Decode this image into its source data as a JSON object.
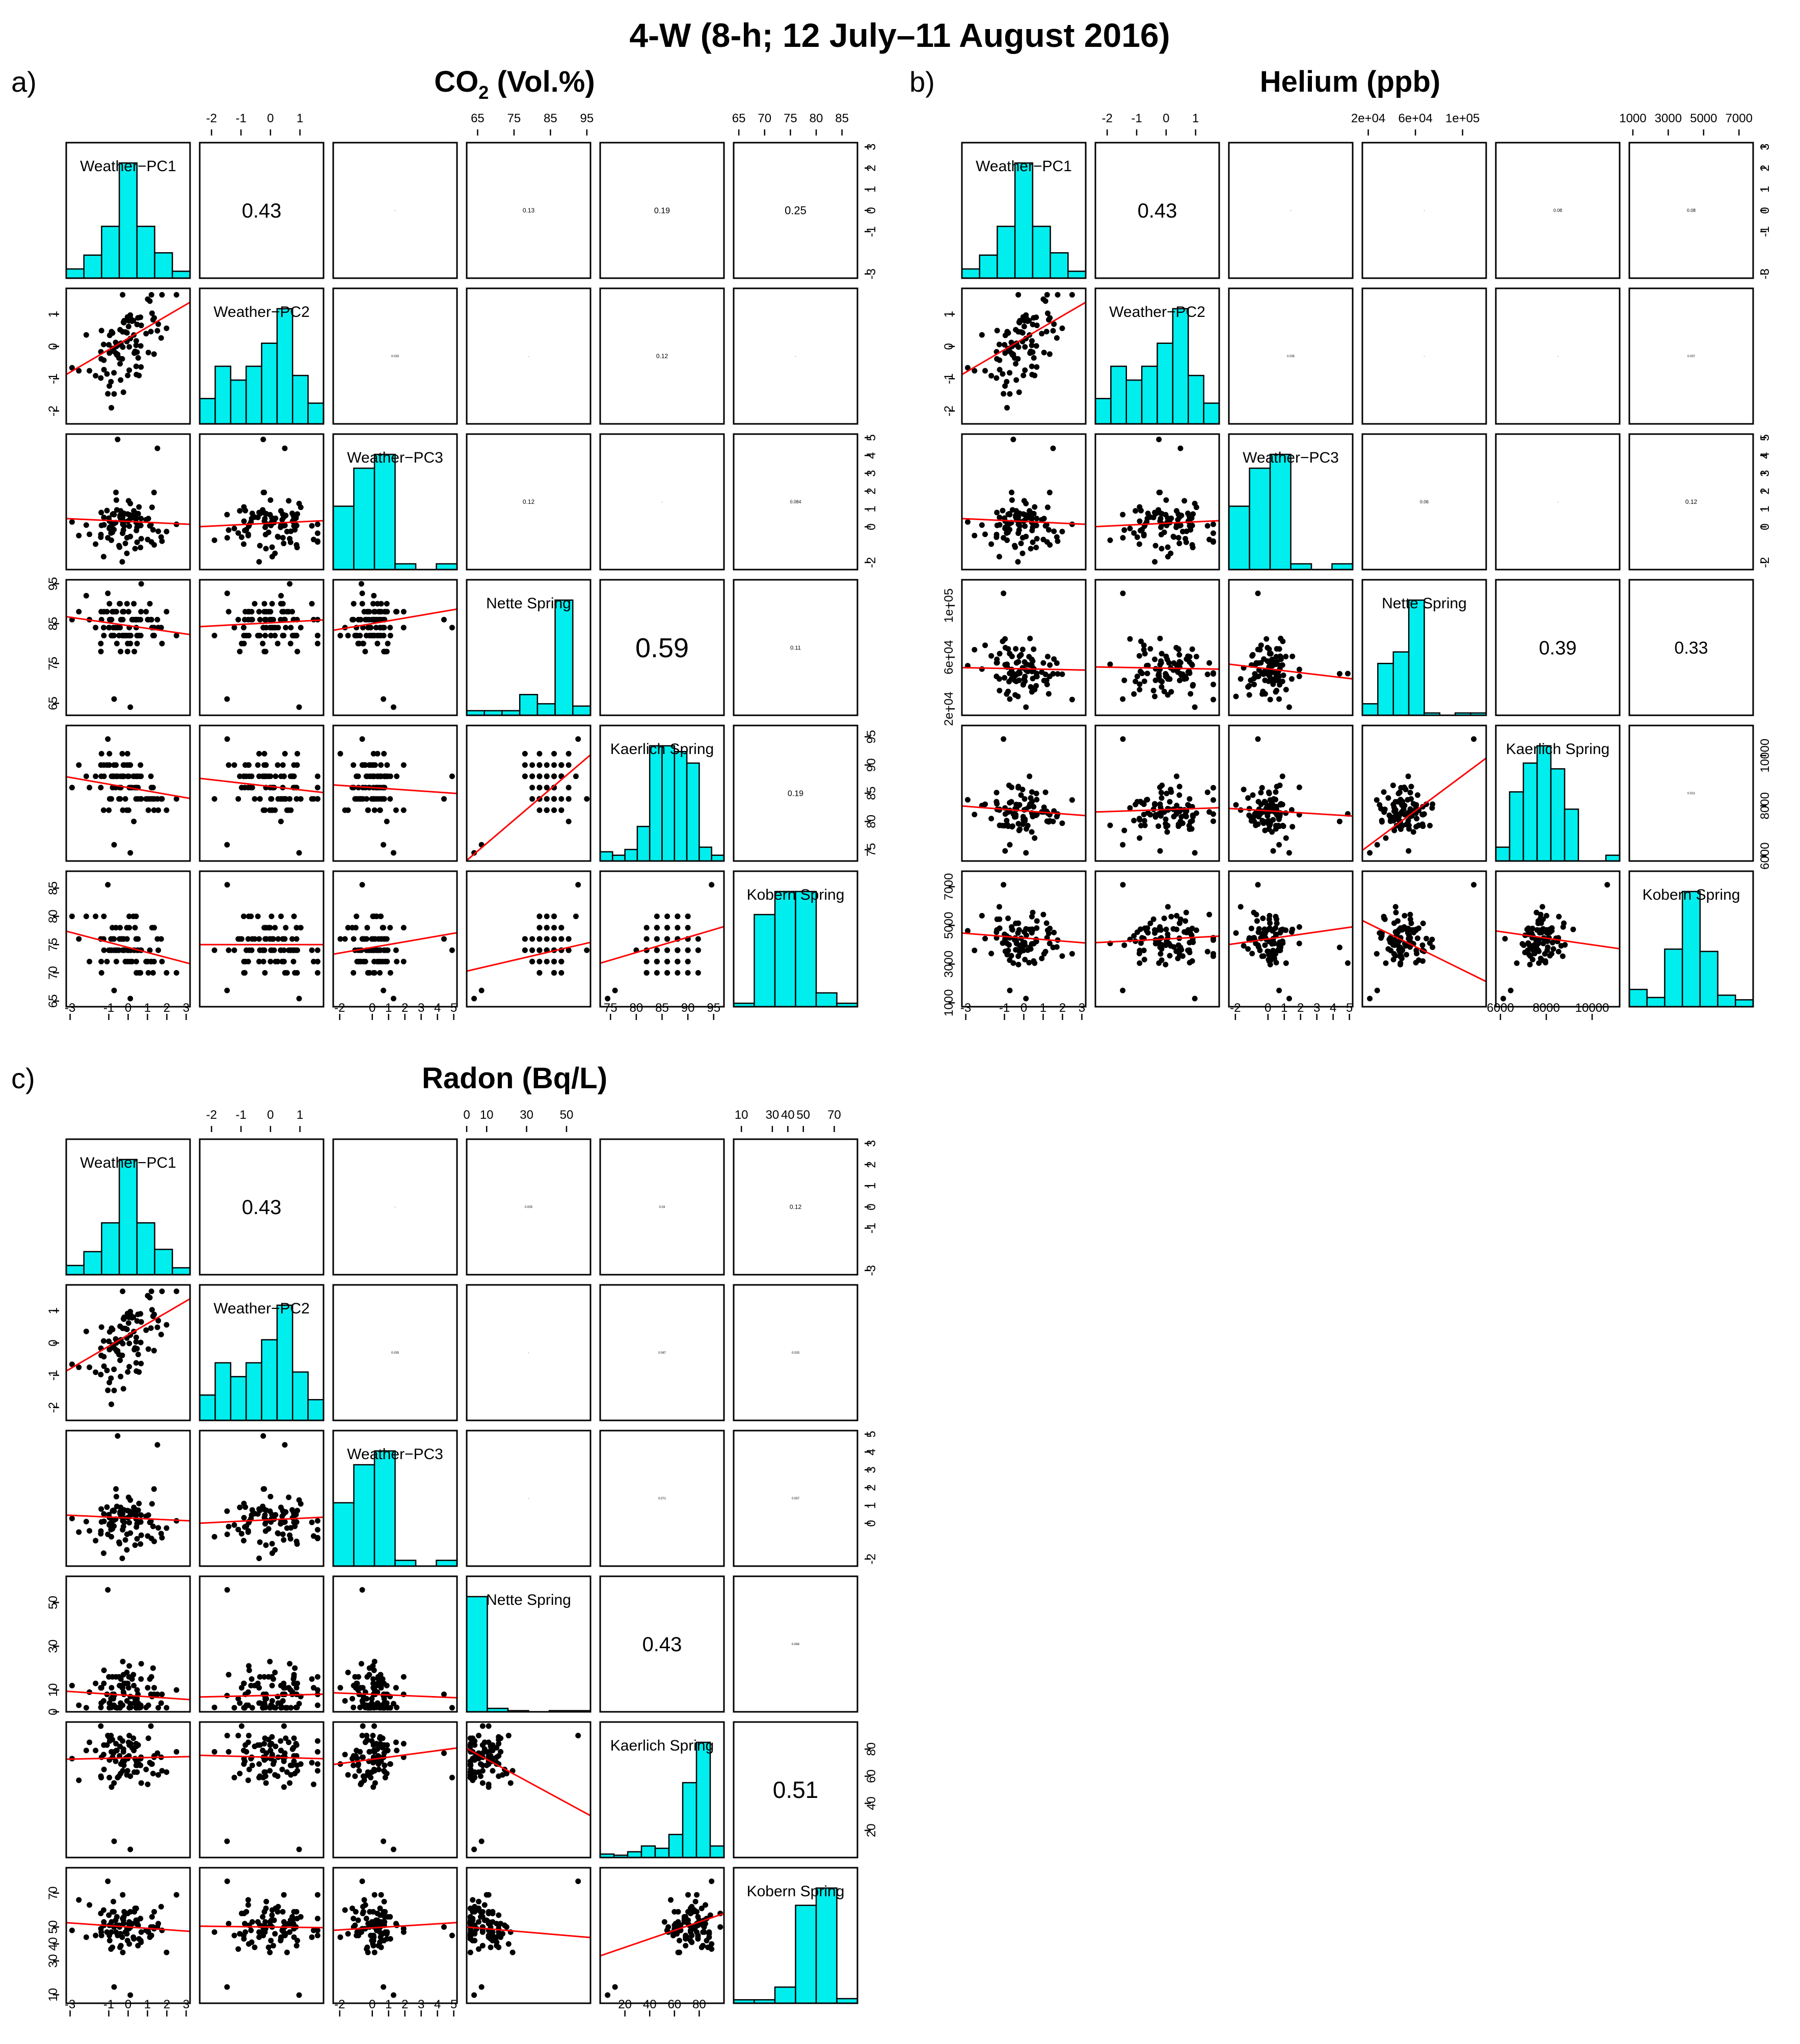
{
  "figure": {
    "title": "4-W (8-h; 12 July–11 August 2016)"
  },
  "chart_data": [
    {
      "type": "scatter-matrix",
      "panel_label": "a)",
      "title": "CO",
      "title_sub": "2",
      "title_suffix": " (Vol.%)",
      "variables": [
        "Weather−PC1",
        "Weather−PC2",
        "Weather−PC3",
        "Nette Spring",
        "Kaerlich Spring",
        "Kobern Spring"
      ],
      "ranges": [
        [
          -3.2,
          3.2
        ],
        [
          -2.4,
          1.8
        ],
        [
          -2.4,
          5.2
        ],
        [
          62,
          96
        ],
        [
          73,
          97
        ],
        [
          64,
          88
        ]
      ],
      "ticks": [
        [
          "-3",
          "-1",
          "0",
          "1",
          "2",
          "3"
        ],
        [
          "-2",
          "-1",
          "0",
          "1"
        ],
        [
          "-2",
          "0",
          "1",
          "2",
          "3",
          "4",
          "5"
        ],
        [
          "65",
          "75",
          "85",
          "95"
        ],
        [
          "75",
          "80",
          "85",
          "90",
          "95"
        ],
        [
          "65",
          "70",
          "75",
          "80",
          "85"
        ]
      ],
      "tick_values": [
        [
          -3,
          -1,
          0,
          1,
          2,
          3
        ],
        [
          -2,
          -1,
          0,
          1
        ],
        [
          -2,
          0,
          1,
          2,
          3,
          4,
          5
        ],
        [
          65,
          75,
          85,
          95
        ],
        [
          75,
          80,
          85,
          90,
          95
        ],
        [
          65,
          70,
          75,
          80,
          85
        ]
      ],
      "histograms": [
        [
          0.08,
          0.2,
          0.45,
          1.0,
          0.45,
          0.22,
          0.06
        ],
        [
          0.22,
          0.5,
          0.38,
          0.5,
          0.7,
          1.0,
          0.42,
          0.18
        ],
        [
          0.55,
          0.88,
          1.0,
          0.05,
          0.0,
          0.05
        ],
        [
          0.04,
          0.04,
          0.04,
          0.18,
          0.1,
          1.0,
          0.08
        ],
        [
          0.08,
          0.05,
          0.1,
          0.3,
          1.0,
          1.0,
          0.95,
          0.85,
          0.12,
          0.05
        ],
        [
          0.03,
          0.8,
          1.0,
          1.0,
          0.12,
          0.03
        ]
      ],
      "correlations": [
        {
          "row": 0,
          "col": 1,
          "value": "0.43",
          "scale": 1.0
        },
        {
          "row": 0,
          "col": 2,
          "value": "-",
          "scale": 0.15
        },
        {
          "row": 0,
          "col": 3,
          "value": "0.13",
          "scale": 0.3
        },
        {
          "row": 0,
          "col": 4,
          "value": "0.19",
          "scale": 0.4
        },
        {
          "row": 0,
          "col": 5,
          "value": "0.25",
          "scale": 0.55
        },
        {
          "row": 1,
          "col": 2,
          "value": "0.033",
          "scale": 0.15
        },
        {
          "row": 1,
          "col": 3,
          "value": "-",
          "scale": 0.15
        },
        {
          "row": 1,
          "col": 4,
          "value": "0.12",
          "scale": 0.3
        },
        {
          "row": 1,
          "col": 5,
          "value": "-",
          "scale": 0.15
        },
        {
          "row": 2,
          "col": 3,
          "value": "0.12",
          "scale": 0.3
        },
        {
          "row": 2,
          "col": 4,
          "value": "-",
          "scale": 0.15
        },
        {
          "row": 2,
          "col": 5,
          "value": "0.084",
          "scale": 0.22
        },
        {
          "row": 3,
          "col": 4,
          "value": "0.59",
          "scale": 1.35
        },
        {
          "row": 3,
          "col": 5,
          "value": "0.11",
          "scale": 0.28
        },
        {
          "row": 4,
          "col": 5,
          "value": "0.19",
          "scale": 0.4
        }
      ],
      "fits": [
        {
          "row": 1,
          "col": 0,
          "a": 0.25,
          "b": 0.35
        },
        {
          "row": 2,
          "col": 0,
          "a": 0.3,
          "b": -0.05
        },
        {
          "row": 2,
          "col": 1,
          "a": 0.2,
          "b": 0.08
        },
        {
          "row": 3,
          "col": 0,
          "a": 84.5,
          "b": -0.7
        },
        {
          "row": 3,
          "col": 1,
          "a": 85.2,
          "b": 0.4
        },
        {
          "row": 3,
          "col": 2,
          "a": 85.0,
          "b": 0.7
        },
        {
          "row": 4,
          "col": 0,
          "a": 86.0,
          "b": -0.6
        },
        {
          "row": 4,
          "col": 1,
          "a": 86.2,
          "b": -0.6
        },
        {
          "row": 4,
          "col": 2,
          "a": 86.0,
          "b": -0.2
        },
        {
          "row": 4,
          "col": 3,
          "a": 39.0,
          "b": 0.55
        },
        {
          "row": 5,
          "col": 0,
          "a": 74.5,
          "b": -0.9
        },
        {
          "row": 5,
          "col": 1,
          "a": 75.0,
          "b": 0.0
        },
        {
          "row": 5,
          "col": 2,
          "a": 74.5,
          "b": 0.5
        },
        {
          "row": 5,
          "col": 3,
          "a": 61.0,
          "b": 0.15
        },
        {
          "row": 5,
          "col": 4,
          "a": 52.0,
          "b": 0.27
        }
      ],
      "rounding": [
        0.1,
        0.1,
        0.1,
        2,
        2,
        2
      ]
    },
    {
      "type": "scatter-matrix",
      "panel_label": "b)",
      "title": "Helium (ppb)",
      "title_sub": "",
      "title_suffix": "",
      "variables": [
        "Weather−PC1",
        "Weather−PC2",
        "Weather−PC3",
        "Nette Spring",
        "Kaerlich Spring",
        "Kobern Spring"
      ],
      "ranges": [
        [
          -3.2,
          3.2
        ],
        [
          -2.4,
          1.8
        ],
        [
          -2.4,
          5.2
        ],
        [
          15000,
          120000
        ],
        [
          5800,
          11200
        ],
        [
          800,
          7800
        ]
      ],
      "ticks": [
        [
          "-3",
          "-1",
          "0",
          "1",
          "2",
          "3"
        ],
        [
          "-2",
          "-1",
          "0",
          "1"
        ],
        [
          "-2",
          "0",
          "1",
          "2",
          "3",
          "4",
          "5"
        ],
        [
          "2e+04",
          "6e+04",
          "1e+05"
        ],
        [
          "6000",
          "8000",
          "10000"
        ],
        [
          "1000",
          "3000",
          "5000",
          "7000"
        ]
      ],
      "tick_values": [
        [
          -3,
          -1,
          0,
          1,
          2,
          3
        ],
        [
          -2,
          -1,
          0,
          1
        ],
        [
          -2,
          0,
          1,
          2,
          3,
          4,
          5
        ],
        [
          20000,
          60000,
          100000
        ],
        [
          6000,
          8000,
          10000
        ],
        [
          1000,
          3000,
          5000,
          7000
        ]
      ],
      "histograms": [
        [
          0.08,
          0.2,
          0.45,
          1.0,
          0.45,
          0.22,
          0.06
        ],
        [
          0.22,
          0.5,
          0.38,
          0.5,
          0.7,
          1.0,
          0.42,
          0.18
        ],
        [
          0.55,
          0.88,
          1.0,
          0.05,
          0.0,
          0.05
        ],
        [
          0.1,
          0.45,
          0.55,
          1.0,
          0.02,
          0.0,
          0.02,
          0.02
        ],
        [
          0.12,
          0.6,
          0.85,
          1.0,
          0.8,
          0.45,
          0.0,
          0.0,
          0.05
        ],
        [
          0.15,
          0.08,
          0.5,
          1.0,
          0.48,
          0.1,
          0.06
        ]
      ],
      "correlations": [
        {
          "row": 0,
          "col": 1,
          "value": "0.43",
          "scale": 1.0
        },
        {
          "row": 0,
          "col": 2,
          "value": "-",
          "scale": 0.15
        },
        {
          "row": 0,
          "col": 3,
          "value": "-",
          "scale": 0.15
        },
        {
          "row": 0,
          "col": 4,
          "value": "0.08",
          "scale": 0.22
        },
        {
          "row": 0,
          "col": 5,
          "value": "0.08",
          "scale": 0.22
        },
        {
          "row": 1,
          "col": 2,
          "value": "0.035",
          "scale": 0.15
        },
        {
          "row": 1,
          "col": 3,
          "value": "-",
          "scale": 0.15
        },
        {
          "row": 1,
          "col": 4,
          "value": "-",
          "scale": 0.15
        },
        {
          "row": 1,
          "col": 5,
          "value": "0.037",
          "scale": 0.15
        },
        {
          "row": 2,
          "col": 3,
          "value": "0.06",
          "scale": 0.22
        },
        {
          "row": 2,
          "col": 4,
          "value": "-",
          "scale": 0.15
        },
        {
          "row": 2,
          "col": 5,
          "value": "0.12",
          "scale": 0.3
        },
        {
          "row": 3,
          "col": 4,
          "value": "0.39",
          "scale": 0.95
        },
        {
          "row": 3,
          "col": 5,
          "value": "0.33",
          "scale": 0.85
        },
        {
          "row": 4,
          "col": 5,
          "value": "0.021",
          "scale": 0.15
        }
      ],
      "fits": [
        {
          "row": 1,
          "col": 0,
          "a": 0.25,
          "b": 0.35
        },
        {
          "row": 2,
          "col": 0,
          "a": 0.3,
          "b": -0.05
        },
        {
          "row": 2,
          "col": 1,
          "a": 0.2,
          "b": 0.08
        },
        {
          "row": 3,
          "col": 0,
          "a": 51000,
          "b": -300
        },
        {
          "row": 3,
          "col": 1,
          "a": 51500,
          "b": -400
        },
        {
          "row": 3,
          "col": 2,
          "a": 51000,
          "b": -1500
        },
        {
          "row": 4,
          "col": 0,
          "a": 7800,
          "b": -60
        },
        {
          "row": 4,
          "col": 1,
          "a": 7850,
          "b": 40
        },
        {
          "row": 4,
          "col": 2,
          "a": 7800,
          "b": -40
        },
        {
          "row": 4,
          "col": 3,
          "a": 5700,
          "b": 0.035
        },
        {
          "row": 5,
          "col": 0,
          "a": 4350,
          "b": -80
        },
        {
          "row": 5,
          "col": 1,
          "a": 4300,
          "b": 80
        },
        {
          "row": 5,
          "col": 2,
          "a": 4300,
          "b": 120
        },
        {
          "row": 5,
          "col": 3,
          "a": 5700,
          "b": -0.03
        },
        {
          "row": 5,
          "col": 4,
          "a": 5700,
          "b": -0.17
        }
      ],
      "rounding": [
        0.1,
        0.1,
        0.1,
        1,
        1,
        1
      ]
    },
    {
      "type": "scatter-matrix",
      "panel_label": "c)",
      "title": "Radon (Bq/L)",
      "title_sub": "",
      "title_suffix": "",
      "variables": [
        "Weather−PC1",
        "Weather−PC2",
        "Weather−PC3",
        "Nette Spring",
        "Kaerlich Spring",
        "Kobern Spring"
      ],
      "ranges": [
        [
          -3.2,
          3.2
        ],
        [
          -2.4,
          1.8
        ],
        [
          -2.4,
          5.2
        ],
        [
          0,
          62
        ],
        [
          0,
          100
        ],
        [
          5,
          85
        ]
      ],
      "ticks": [
        [
          "-3",
          "-1",
          "0",
          "1",
          "2",
          "3"
        ],
        [
          "-2",
          "-1",
          "0",
          "1"
        ],
        [
          "-2",
          "0",
          "1",
          "2",
          "3",
          "4",
          "5"
        ],
        [
          "0",
          "10",
          "30",
          "50"
        ],
        [
          "20",
          "40",
          "60",
          "80"
        ],
        [
          "10",
          "30",
          "40",
          "50",
          "70"
        ]
      ],
      "tick_values": [
        [
          -3,
          -1,
          0,
          1,
          2,
          3
        ],
        [
          -2,
          -1,
          0,
          1
        ],
        [
          -2,
          0,
          1,
          2,
          3,
          4,
          5
        ],
        [
          0,
          10,
          30,
          50
        ],
        [
          20,
          40,
          60,
          80
        ],
        [
          10,
          30,
          40,
          50,
          70
        ]
      ],
      "histograms": [
        [
          0.08,
          0.2,
          0.45,
          1.0,
          0.45,
          0.22,
          0.06
        ],
        [
          0.22,
          0.5,
          0.38,
          0.5,
          0.7,
          1.0,
          0.42,
          0.18
        ],
        [
          0.55,
          0.88,
          1.0,
          0.05,
          0.0,
          0.05
        ],
        [
          1.0,
          0.03,
          0.01,
          0.0,
          0.01,
          0.01
        ],
        [
          0.03,
          0.02,
          0.05,
          0.1,
          0.08,
          0.2,
          0.65,
          1.0,
          0.1
        ],
        [
          0.03,
          0.03,
          0.14,
          0.85,
          1.0,
          0.04
        ]
      ],
      "correlations": [
        {
          "row": 0,
          "col": 1,
          "value": "0.43",
          "scale": 1.0
        },
        {
          "row": 0,
          "col": 2,
          "value": "-",
          "scale": 0.15
        },
        {
          "row": 0,
          "col": 3,
          "value": "0.005",
          "scale": 0.15
        },
        {
          "row": 0,
          "col": 4,
          "value": "0.03",
          "scale": 0.15
        },
        {
          "row": 0,
          "col": 5,
          "value": "0.12",
          "scale": 0.3
        },
        {
          "row": 1,
          "col": 2,
          "value": "0.035",
          "scale": 0.15
        },
        {
          "row": 1,
          "col": 3,
          "value": "-",
          "scale": 0.15
        },
        {
          "row": 1,
          "col": 4,
          "value": "0.067",
          "scale": 0.15
        },
        {
          "row": 1,
          "col": 5,
          "value": "0.033",
          "scale": 0.15
        },
        {
          "row": 2,
          "col": 3,
          "value": "-",
          "scale": 0.15
        },
        {
          "row": 2,
          "col": 4,
          "value": "0.071",
          "scale": 0.15
        },
        {
          "row": 2,
          "col": 5,
          "value": "0.057",
          "scale": 0.15
        },
        {
          "row": 3,
          "col": 4,
          "value": "0.43",
          "scale": 1.0
        },
        {
          "row": 3,
          "col": 5,
          "value": "0.064",
          "scale": 0.15
        },
        {
          "row": 4,
          "col": 5,
          "value": "0.51",
          "scale": 1.15
        }
      ],
      "fits": [
        {
          "row": 1,
          "col": 0,
          "a": 0.25,
          "b": 0.35
        },
        {
          "row": 2,
          "col": 0,
          "a": 0.3,
          "b": -0.05
        },
        {
          "row": 2,
          "col": 1,
          "a": 0.2,
          "b": 0.08
        },
        {
          "row": 3,
          "col": 0,
          "a": 7.5,
          "b": -0.6
        },
        {
          "row": 3,
          "col": 1,
          "a": 7.5,
          "b": 0.3
        },
        {
          "row": 3,
          "col": 2,
          "a": 8.0,
          "b": -0.3
        },
        {
          "row": 4,
          "col": 0,
          "a": 73.5,
          "b": 0.3
        },
        {
          "row": 4,
          "col": 1,
          "a": 74.0,
          "b": -0.6
        },
        {
          "row": 4,
          "col": 2,
          "a": 72.5,
          "b": 1.6
        },
        {
          "row": 4,
          "col": 3,
          "a": 80.5,
          "b": -0.8
        },
        {
          "row": 5,
          "col": 0,
          "a": 50.0,
          "b": -0.8
        },
        {
          "row": 5,
          "col": 1,
          "a": 50.0,
          "b": -0.2
        },
        {
          "row": 5,
          "col": 2,
          "a": 49.5,
          "b": 0.6
        },
        {
          "row": 5,
          "col": 3,
          "a": 50.0,
          "b": -0.1
        },
        {
          "row": 5,
          "col": 4,
          "a": 33.0,
          "b": 0.25
        }
      ],
      "rounding": [
        0.1,
        0.1,
        0.1,
        1,
        1,
        1
      ]
    }
  ],
  "colors": {
    "histogram_fill": "#00eeee",
    "fit_line": "#ff0000",
    "points": "#000000",
    "frame": "#000000"
  }
}
